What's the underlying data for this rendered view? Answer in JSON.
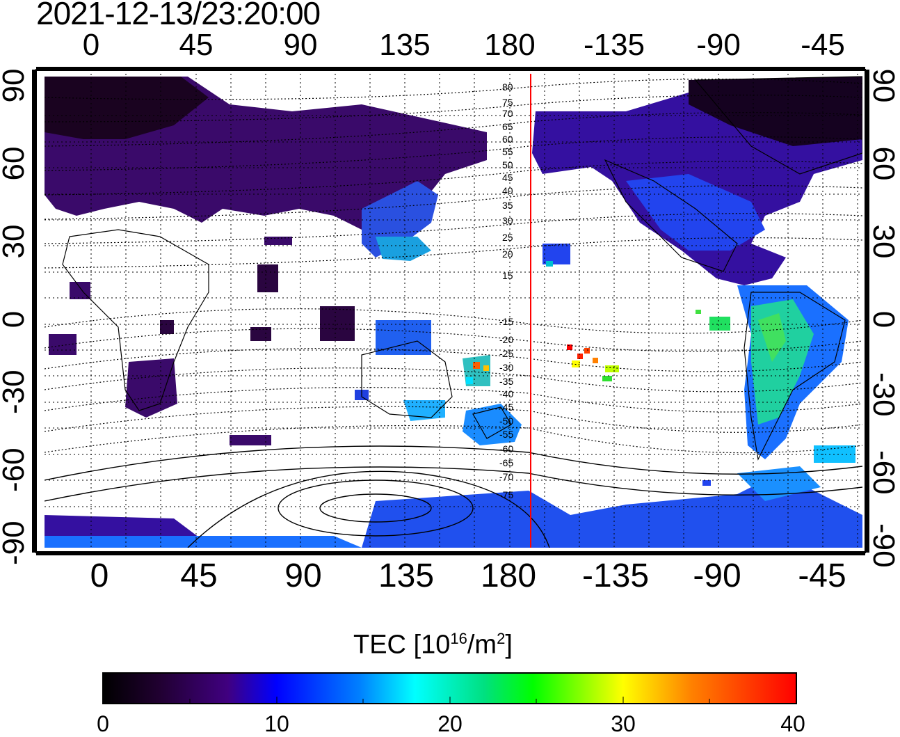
{
  "timestamp": "2021-12-13/23:20:00",
  "lon_labels": [
    "0",
    "45",
    "90",
    "135",
    "180",
    "-135",
    "-90",
    "-45"
  ],
  "lat_labels": [
    "90",
    "60",
    "30",
    "0",
    "-30",
    "-60",
    "-90"
  ],
  "contour_labels_north": [
    "80",
    "75",
    "70",
    "65",
    "60",
    "55",
    "50",
    "45",
    "40",
    "35",
    "30",
    "25",
    "20",
    "15"
  ],
  "contour_labels_south": [
    "-15",
    "-20",
    "-25",
    "-30",
    "-35",
    "-40",
    "-45",
    "-50",
    "-55",
    "-60",
    "-65",
    "-70",
    "-75"
  ],
  "colorbar": {
    "title_prefix": "TEC  [10",
    "title_sup1": "16",
    "title_mid": "/m",
    "title_sup2": "2",
    "title_suffix": "]",
    "ticks": [
      "0",
      "10",
      "20",
      "30",
      "40"
    ],
    "min": 0,
    "max": 40
  },
  "colors": {
    "terminator_line": "#ff0000",
    "tec_low": "#0a0010",
    "tec_mid": "#0000ff",
    "tec_high": "#ff0000"
  }
}
